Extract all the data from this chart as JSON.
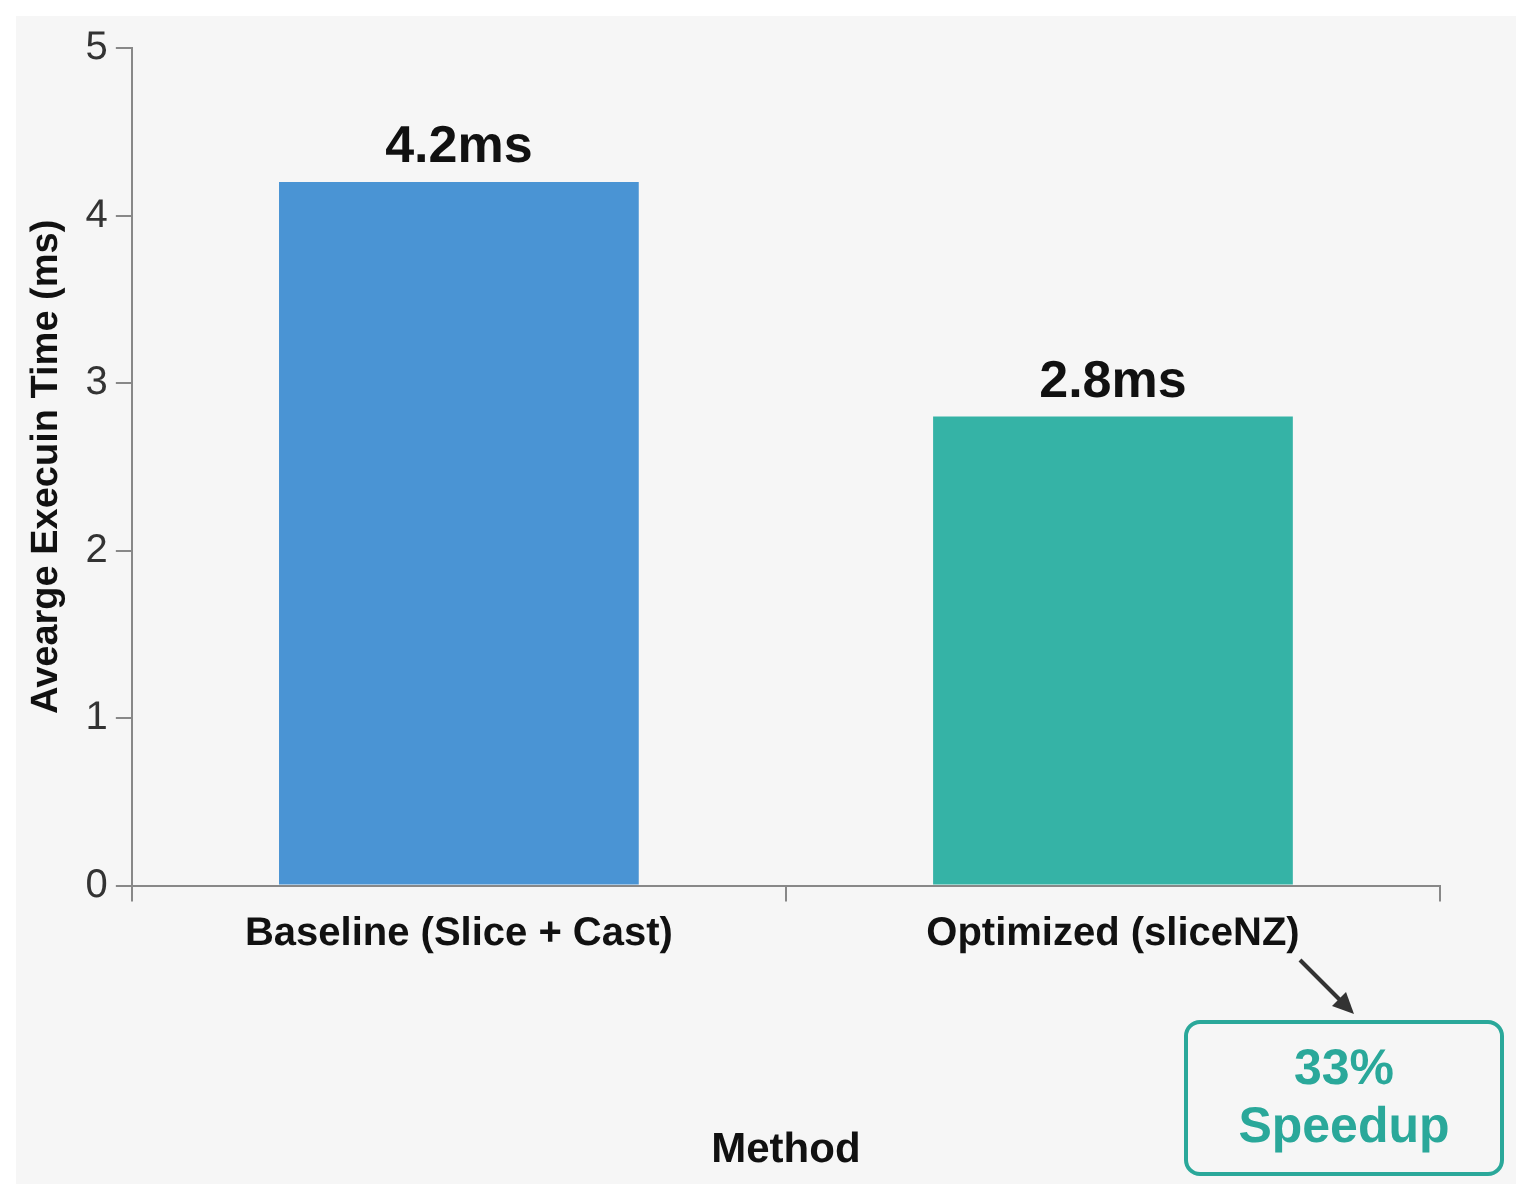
{
  "chart_data": {
    "type": "bar",
    "xlabel": "Method",
    "ylabel": "Avearge Execuin Time (ms)",
    "categories": [
      "Baseline (Slice + Cast)",
      "Optimized (sliceNZ)"
    ],
    "values": [
      4.2,
      2.8
    ],
    "colors": [
      "#4a94d4",
      "#35b3a6"
    ],
    "value_labels": [
      "4.2ms",
      "2.8ms"
    ],
    "ylim": [
      0,
      5
    ],
    "yticks": [
      0,
      1,
      2,
      3,
      4,
      5
    ],
    "grid": false,
    "annotations": [
      "33% Speedup"
    ]
  }
}
